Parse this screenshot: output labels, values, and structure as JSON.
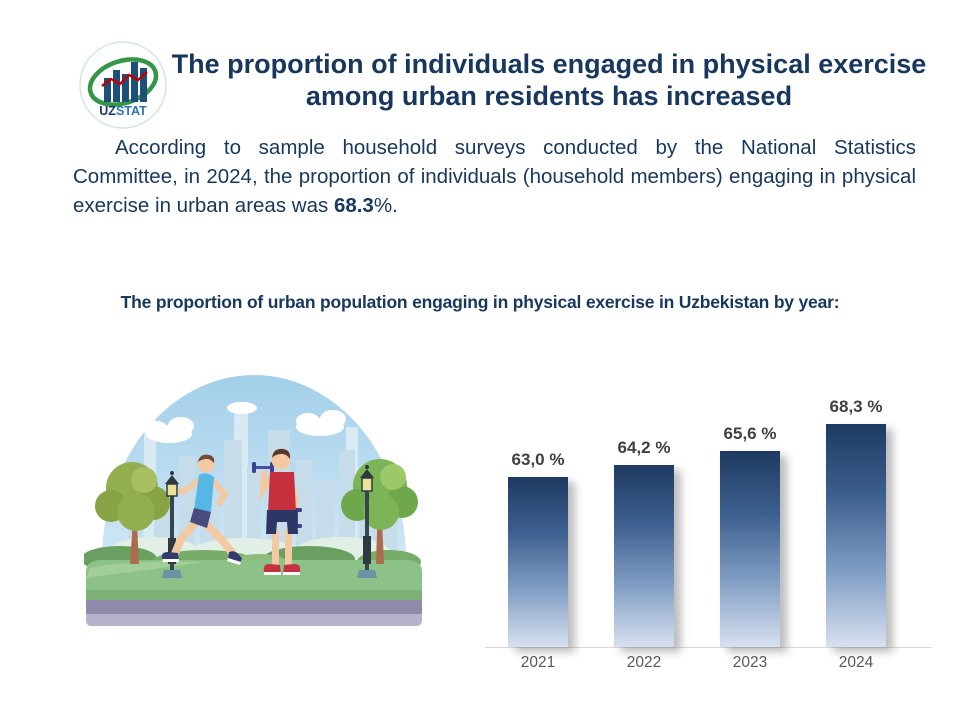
{
  "window": {
    "background": "#ffffff"
  },
  "logo": {
    "name": "UZSTAT",
    "text_uz": "UZ",
    "text_stat": "STAT"
  },
  "header": {
    "title": "The proportion of individuals engaged in physical exercise among urban residents has increased"
  },
  "intro": {
    "before": "According to sample household surveys conducted by the National Statistics Committee, in 2024, the proportion of individuals (household members) engaging in physical exercise in urban areas was ",
    "highlight": "68.3",
    "after": "%."
  },
  "chart_heading": "The proportion of urban population engaging in physical exercise in Uzbekistan by year:",
  "illustration": {
    "alt": "Two men exercising in a city park - one jogging, one lifting dumbbells"
  },
  "chart_data": {
    "type": "bar",
    "title": "The proportion of urban population engaging in physical exercise in Uzbekistan by year",
    "categories": [
      "2021",
      "2022",
      "2023",
      "2024"
    ],
    "values": [
      63.0,
      64.2,
      65.6,
      68.3
    ],
    "value_labels": [
      "63,0 %",
      "64,2 %",
      "65,6 %",
      "68,3 %"
    ],
    "unit": "%",
    "xlabel": "",
    "ylabel": "",
    "ylim": [
      46,
      70
    ],
    "grid": false,
    "legend": false,
    "colors": {
      "bar_top": "#1e3a61",
      "bar_bottom": "#d7e1f0",
      "value_label": "#404040",
      "tick_label": "#595959",
      "axis_line": "#d9d9d9"
    }
  },
  "theme": {
    "title_color": "#17375d",
    "body_color": "#17375d"
  }
}
